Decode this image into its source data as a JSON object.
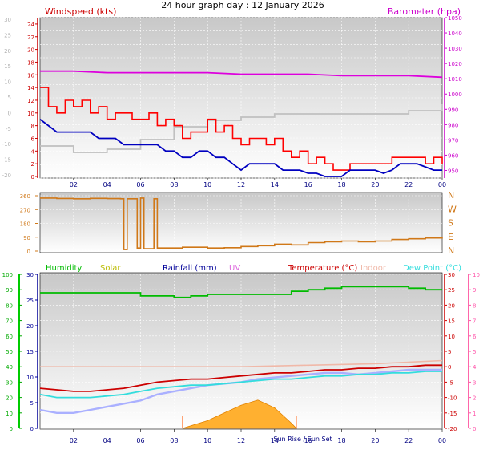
{
  "title": "24 hour graph day : 12 January 2026",
  "colors": {
    "wind": "#ff0000",
    "gust_avg": "#0000c0",
    "baro": "#dd00dd",
    "indoor_hum": "#c0c0c0",
    "direction": "#d07818",
    "humidity": "#00bb00",
    "solar": "#bbbb00",
    "rain": "#000099",
    "uv": "#dd66dd",
    "temperature": "#cc0000",
    "indoor": "#f0b8a8",
    "dewpoint": "#33dddd",
    "temp_fill": "#aab0ff",
    "solar_fill": "#ffb030"
  },
  "x_tick_labels": [
    "02",
    "04",
    "06",
    "08",
    "10",
    "12",
    "14",
    "16",
    "18",
    "20",
    "22",
    "00"
  ],
  "chart_data": [
    {
      "type": "line",
      "panel": "wind-barometer",
      "labels": {
        "left": "Windspeed (kts)",
        "right": "Barometer (hpa)"
      },
      "x_range_hours": [
        0,
        24
      ],
      "left_axis": {
        "ticks": [
          "24",
          "22",
          "20",
          "18",
          "16",
          "14",
          "12",
          "10",
          "8",
          "6",
          "4",
          "2",
          "0"
        ],
        "range": [
          0,
          25
        ]
      },
      "outer_left_axis": {
        "ticks": [
          "30",
          "25",
          "20",
          "15",
          "10",
          "5",
          "0",
          "-5",
          "-10",
          "-15",
          "-20"
        ],
        "range": [
          -20,
          30
        ]
      },
      "right_axis": {
        "ticks": [
          "1050",
          "1040",
          "1030",
          "1020",
          "1010",
          "1000",
          "990",
          "980",
          "970",
          "960",
          "950"
        ],
        "range": [
          945,
          1050
        ]
      },
      "series": [
        {
          "key": "barometer",
          "axis": "right",
          "x": [
            0,
            2,
            4,
            6,
            8,
            10,
            12,
            14,
            16,
            18,
            20,
            22,
            24
          ],
          "values": [
            1015,
            1015,
            1014,
            1014,
            1014,
            1014,
            1013,
            1013,
            1013,
            1012,
            1012,
            1012,
            1011
          ]
        },
        {
          "key": "wind_gust",
          "axis": "left",
          "x": [
            0,
            0.5,
            1,
            1.5,
            2,
            2.5,
            3,
            3.5,
            4,
            4.5,
            5,
            5.5,
            6,
            6.5,
            7,
            7.5,
            8,
            8.5,
            9,
            9.5,
            10,
            10.5,
            11,
            11.5,
            12,
            12.5,
            13,
            13.5,
            14,
            14.5,
            15,
            15.5,
            16,
            16.5,
            17,
            17.5,
            18,
            18.5,
            19,
            19.5,
            20,
            20.5,
            21,
            21.5,
            22,
            22.5,
            23,
            23.5,
            24
          ],
          "values": [
            14,
            11,
            10,
            12,
            11,
            12,
            10,
            11,
            9,
            10,
            10,
            9,
            9,
            10,
            8,
            9,
            8,
            6,
            7,
            7,
            9,
            7,
            8,
            6,
            5,
            6,
            6,
            5,
            6,
            4,
            3,
            4,
            2,
            3,
            2,
            1,
            1,
            2,
            2,
            2,
            2,
            2,
            3,
            3,
            3,
            3,
            2,
            3,
            2
          ]
        },
        {
          "key": "wind_avg",
          "axis": "left",
          "x": [
            0,
            0.5,
            1,
            1.5,
            2,
            2.5,
            3,
            3.5,
            4,
            4.5,
            5,
            5.5,
            6,
            6.5,
            7,
            7.5,
            8,
            8.5,
            9,
            9.5,
            10,
            10.5,
            11,
            11.5,
            12,
            12.5,
            13,
            13.5,
            14,
            14.5,
            15,
            15.5,
            16,
            16.5,
            17,
            17.5,
            18,
            18.5,
            19,
            19.5,
            20,
            20.5,
            21,
            21.5,
            22,
            22.5,
            23,
            23.5,
            24
          ],
          "values": [
            9,
            8,
            7,
            7,
            7,
            7,
            7,
            6,
            6,
            6,
            5,
            5,
            5,
            5,
            5,
            4,
            4,
            3,
            3,
            4,
            4,
            3,
            3,
            2,
            1,
            2,
            2,
            2,
            2,
            1,
            1,
            1,
            0.5,
            0.5,
            0,
            0,
            0,
            1,
            1,
            1,
            1,
            0.5,
            1,
            2,
            2,
            2,
            1.5,
            1,
            1
          ]
        },
        {
          "key": "indoor_humidity",
          "axis": "outer",
          "x": [
            0,
            2,
            4,
            6,
            8,
            10,
            12,
            14,
            16,
            18,
            20,
            22,
            24
          ],
          "values": [
            -10,
            -12,
            -11,
            -8,
            -4,
            -2,
            -1,
            0,
            0,
            0,
            0,
            1,
            3
          ]
        }
      ]
    },
    {
      "type": "line",
      "panel": "wind-direction",
      "left_axis": {
        "ticks": [
          "360",
          "270",
          "180",
          "90",
          "0"
        ],
        "range": [
          0,
          360
        ]
      },
      "right_axis": {
        "ticks": [
          "N",
          "W",
          "S",
          "E",
          "N"
        ]
      },
      "series": [
        {
          "key": "direction",
          "x": [
            0,
            1,
            2,
            3,
            4,
            4.8,
            5,
            5.2,
            5.8,
            6,
            6.2,
            6.8,
            7,
            7.2,
            8,
            8.5,
            9,
            10,
            11,
            12,
            13,
            14,
            15,
            16,
            17,
            18,
            19,
            20,
            21,
            22,
            23,
            24
          ],
          "values": [
            345,
            342,
            340,
            343,
            341,
            340,
            10,
            340,
            20,
            345,
            15,
            340,
            20,
            20,
            20,
            25,
            25,
            20,
            22,
            30,
            35,
            45,
            40,
            55,
            60,
            65,
            60,
            65,
            75,
            80,
            85,
            90
          ]
        }
      ]
    },
    {
      "type": "line",
      "panel": "temperature-humidity",
      "legend": [
        "Humidity",
        "Solar",
        "Rainfall (mm)",
        "UV",
        "Temperature (°C)",
        "Indoor",
        "Dew Point (°C)"
      ],
      "left_axis": {
        "ticks": [
          "100",
          "90",
          "80",
          "70",
          "60",
          "50",
          "40",
          "30",
          "20",
          "10",
          "0"
        ],
        "range": [
          0,
          100
        ]
      },
      "inner_left_axis": {
        "ticks": [
          "30",
          "25",
          "20",
          "15",
          "10",
          "5",
          "0"
        ],
        "range": [
          0,
          30
        ]
      },
      "right_axis": {
        "ticks": [
          "30",
          "25",
          "20",
          "15",
          "10",
          "5",
          "0",
          "-5",
          "-10",
          "-15",
          "-20"
        ],
        "range": [
          -20,
          30
        ]
      },
      "outer_right_axis": {
        "ticks": [
          "10",
          "9",
          "8",
          "7",
          "6",
          "5",
          "4",
          "3",
          "2",
          "1",
          "0"
        ],
        "range": [
          0,
          10
        ]
      },
      "sun_labels": "Sun Rise / Sun Set",
      "series": [
        {
          "key": "humidity",
          "axis": "left",
          "x": [
            0,
            1,
            2,
            3,
            4,
            5,
            6,
            7,
            8,
            9,
            10,
            11,
            12,
            13,
            14,
            15,
            16,
            17,
            18,
            19,
            20,
            21,
            22,
            23,
            24
          ],
          "values": [
            88,
            88,
            88,
            88,
            88,
            88,
            86,
            86,
            85,
            86,
            87,
            87,
            87,
            87,
            87,
            89,
            90,
            91,
            92,
            92,
            92,
            92,
            91,
            90,
            90
          ]
        },
        {
          "key": "indoor",
          "axis": "right",
          "x": [
            0,
            4,
            8,
            12,
            16,
            20,
            24
          ],
          "values": [
            0,
            0,
            0,
            0,
            0.5,
            1,
            2
          ]
        },
        {
          "key": "temperature",
          "axis": "right",
          "x": [
            0,
            1,
            2,
            3,
            4,
            5,
            6,
            7,
            8,
            9,
            10,
            11,
            12,
            13,
            14,
            15,
            16,
            17,
            18,
            19,
            20,
            21,
            22,
            23,
            24
          ],
          "values": [
            -7,
            -7.5,
            -8,
            -8,
            -7.5,
            -7,
            -6,
            -5,
            -4.5,
            -4,
            -4,
            -3.5,
            -3,
            -2.5,
            -2,
            -2,
            -1.5,
            -1,
            -1,
            -0.5,
            -0.5,
            0,
            0,
            0.5,
            0.5
          ]
        },
        {
          "key": "dewpoint",
          "axis": "right",
          "x": [
            0,
            1,
            2,
            3,
            4,
            5,
            6,
            7,
            8,
            9,
            10,
            11,
            12,
            13,
            14,
            15,
            16,
            17,
            18,
            19,
            20,
            21,
            22,
            23,
            24
          ],
          "values": [
            -9,
            -10,
            -10,
            -10,
            -9.5,
            -9,
            -8,
            -7,
            -6.5,
            -6,
            -6,
            -5.5,
            -5,
            -4.5,
            -4,
            -4,
            -3.5,
            -3,
            -3,
            -2.5,
            -2.5,
            -2,
            -2,
            -1.5,
            -1.5
          ]
        },
        {
          "key": "temp_fill",
          "axis": "right",
          "x": [
            0,
            1,
            2,
            3,
            4,
            5,
            6,
            7,
            8,
            9,
            10,
            11,
            12,
            13,
            14,
            15,
            16,
            17,
            18,
            19,
            20,
            21,
            22,
            23,
            24
          ],
          "values": [
            -14,
            -15,
            -15,
            -14,
            -13,
            -12,
            -11,
            -9,
            -8,
            -7,
            -6,
            -5.5,
            -5,
            -4,
            -3.5,
            -3,
            -2.5,
            -2,
            -2,
            -2.5,
            -2,
            -1.5,
            -1,
            -1,
            -1
          ]
        },
        {
          "key": "solar",
          "axis": "left",
          "x": [
            8.5,
            9,
            10,
            11,
            12,
            13,
            14,
            14.5,
            15,
            15.3
          ],
          "values": [
            0,
            0.5,
            1.5,
            3,
            4.5,
            5.5,
            4,
            2.5,
            1,
            0
          ]
        }
      ]
    }
  ]
}
